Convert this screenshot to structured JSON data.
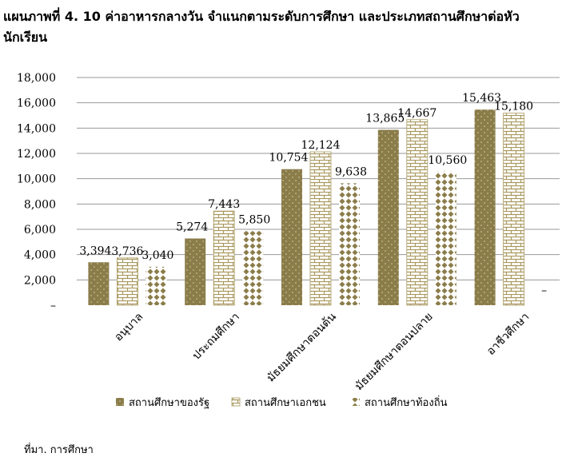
{
  "title_line1": "แผนภาพที่ 4. 10 ค่าอาหารกลางวัน จำแนกตามระดับการศึกษา และประเภทสถานศึกษาต่อหัว",
  "title_line2": "นักเรียน",
  "source": "ที่มา. การศึกษา",
  "colors": {
    "state": "#8B7D4A",
    "private": "#A9995F",
    "local": "#8B7D4A",
    "grid": "#9a9a9a"
  },
  "chart_data": {
    "type": "bar",
    "categories": [
      "อนุบาล",
      "ประถมศึกษา",
      "มัธยมศึกษาตอนต้น",
      "มัธยมศึกษาตอนปลาย",
      "อาชีวศึกษา"
    ],
    "series": [
      {
        "name": "สถานศึกษาของรัฐ",
        "values": [
          3394,
          5274,
          10754,
          13865,
          15463
        ],
        "labels": [
          "3,394",
          "5,274",
          "10,754",
          "13,865",
          "15,463"
        ],
        "pattern": "dots"
      },
      {
        "name": "สถานศึกษาเอกชน",
        "values": [
          3736,
          7443,
          12124,
          14667,
          15180
        ],
        "labels": [
          "3,736",
          "7,443",
          "12,124",
          "14,667",
          "15,180"
        ],
        "pattern": "brick"
      },
      {
        "name": "สถานศึกษาท้องถิ่น",
        "values": [
          3040,
          5850,
          9638,
          10560,
          0
        ],
        "labels": [
          "3,040",
          "5,850",
          "9,638",
          "10,560",
          "–"
        ],
        "pattern": "diamond"
      }
    ],
    "yticks": [
      "–",
      "2,000",
      "4,000",
      "6,000",
      "8,000",
      "10,000",
      "12,000",
      "14,000",
      "16,000",
      "18,000"
    ],
    "ylim": [
      0,
      18000
    ],
    "ystep": 2000,
    "grid": true,
    "legend_position": "bottom"
  }
}
